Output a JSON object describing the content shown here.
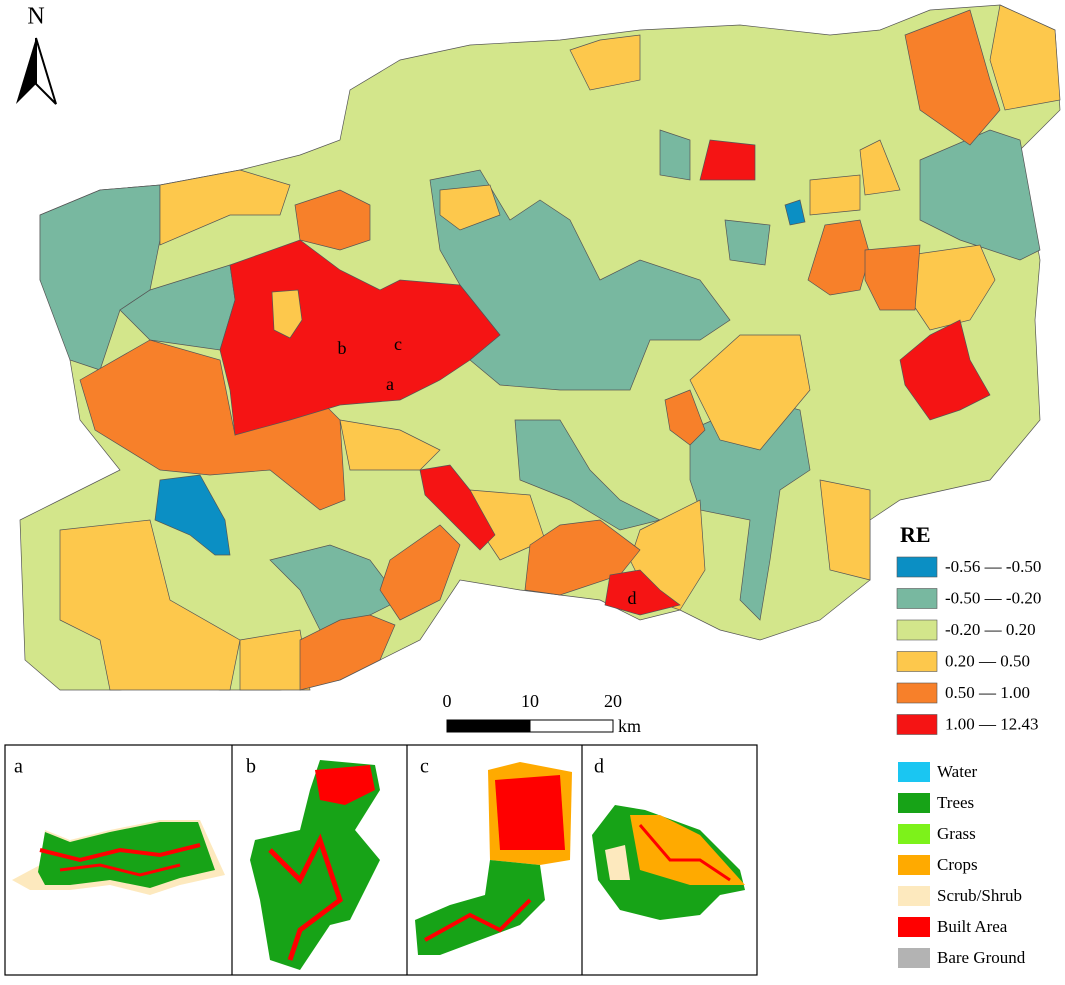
{
  "north": "N",
  "map_labels": [
    "a",
    "b",
    "c",
    "d"
  ],
  "legend": {
    "title": "RE",
    "items": [
      {
        "label": "-0.56 — -0.50",
        "color": "#0b8fc4"
      },
      {
        "label": "-0.50 — -0.20",
        "color": "#78b8a0"
      },
      {
        "label": "-0.20 — 0.20",
        "color": "#d3e68b"
      },
      {
        "label": "0.20 — 0.50",
        "color": "#fdc84c"
      },
      {
        "label": "0.50 — 1.00",
        "color": "#f7802a"
      },
      {
        "label": "1.00 — 12.43",
        "color": "#f51414"
      }
    ]
  },
  "scale_bar": {
    "ticks": [
      0,
      10,
      20
    ],
    "unit": "km"
  },
  "insets": [
    "a",
    "b",
    "c",
    "d"
  ],
  "land_cover": {
    "items": [
      {
        "label": "Water",
        "color": "#1ac6f2"
      },
      {
        "label": "Trees",
        "color": "#17a317"
      },
      {
        "label": "Grass",
        "color": "#7df21a"
      },
      {
        "label": "Crops",
        "color": "#ffaa00"
      },
      {
        "label": "Scrub/Shrub",
        "color": "#fde9be"
      },
      {
        "label": "Built Area",
        "color": "#ff0000"
      },
      {
        "label": "Bare Ground",
        "color": "#b3b3b3"
      }
    ]
  }
}
